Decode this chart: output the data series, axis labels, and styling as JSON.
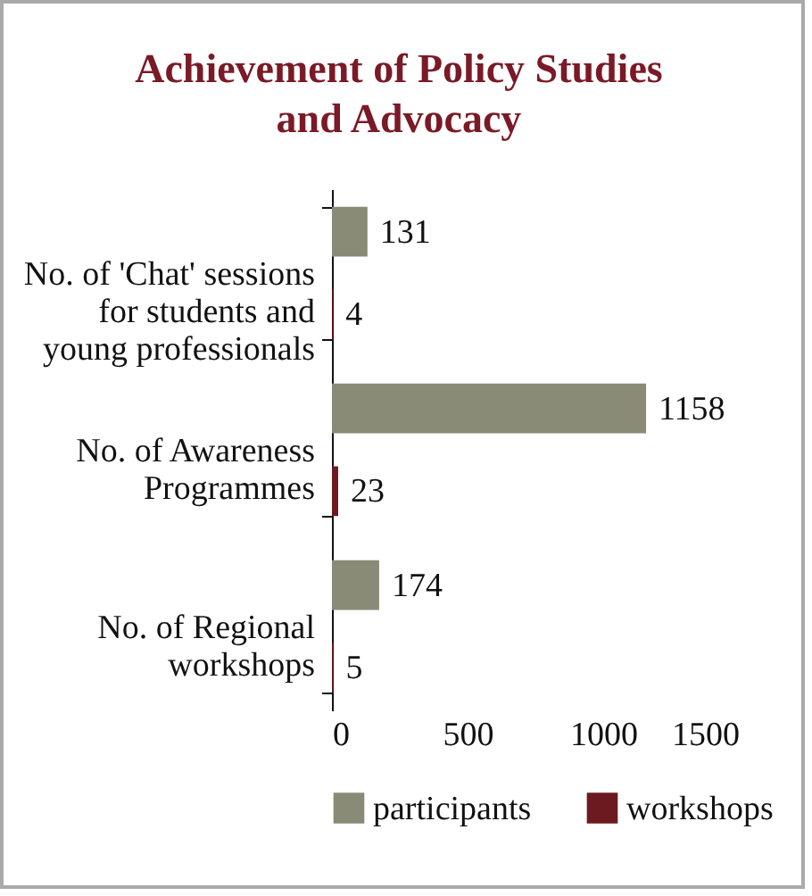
{
  "chart_data": {
    "type": "bar",
    "orientation": "horizontal",
    "title": "Achievement of Policy Studies\nand Advocacy",
    "categories": [
      "No. of 'Chat' sessions\nfor students and\nyoung professionals",
      "No. of Awareness\nProgrammes",
      "No. of Regional\nworkshops"
    ],
    "series": [
      {
        "name": "participants",
        "color": "#8a8b76",
        "values": [
          131,
          1158,
          174
        ]
      },
      {
        "name": "workshops",
        "color": "#6b1a20",
        "values": [
          4,
          23,
          5
        ]
      }
    ],
    "xlim": [
      0,
      1500
    ],
    "xticks": [
      0,
      500,
      1000,
      1500
    ],
    "data_labels": true,
    "grid": false,
    "legend": "bottom"
  }
}
